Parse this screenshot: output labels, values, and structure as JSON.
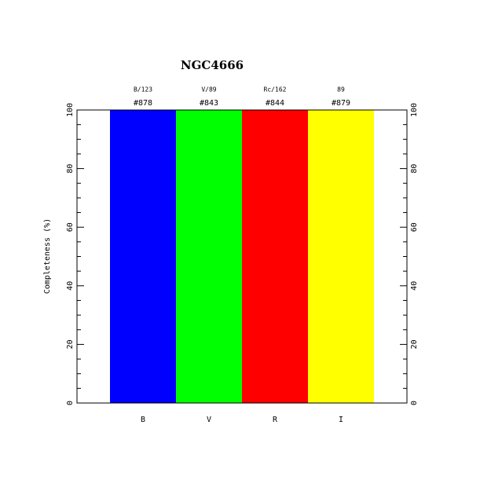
{
  "chart_data": {
    "type": "bar",
    "title": "NGC4666",
    "y_label": "Completeness (%)",
    "categories": [
      "B",
      "V",
      "R",
      "I"
    ],
    "values": [
      100,
      100,
      100,
      100
    ],
    "colors": [
      "#0000ff",
      "#00ff00",
      "#ff0000",
      "#ffff00"
    ],
    "filter_labels": [
      "B/123",
      "V/89",
      "Rc/162",
      "89"
    ],
    "count_labels": [
      "#878",
      "#843",
      "#844",
      "#879"
    ],
    "ylim": [
      0,
      100
    ],
    "yticks": [
      0,
      20,
      40,
      60,
      80,
      100
    ],
    "yminorticks": [
      5,
      10,
      15,
      25,
      30,
      35,
      45,
      50,
      55,
      65,
      70,
      75,
      85,
      90,
      95
    ]
  }
}
